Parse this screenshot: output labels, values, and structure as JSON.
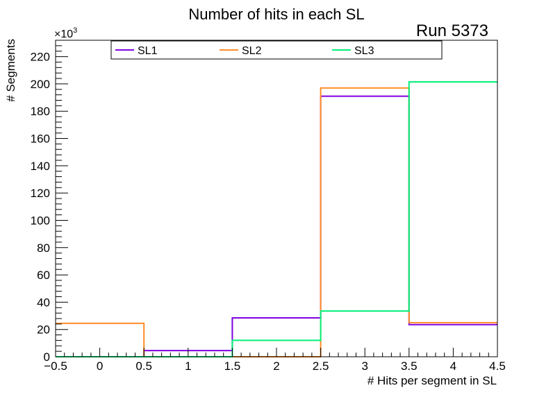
{
  "chart_data": {
    "type": "histogram-step",
    "title": "Number of hits in each SL",
    "annotation": "Run 5373",
    "xlabel": "# Hits per segment in SL",
    "ylabel": "# Segments",
    "y_scale_label": "×10",
    "y_scale_exponent": "3",
    "xlim": [
      -0.5,
      4.5
    ],
    "ylim": [
      0,
      232
    ],
    "x_ticks": [
      -0.5,
      0,
      0.5,
      1,
      1.5,
      2,
      2.5,
      3,
      3.5,
      4,
      4.5
    ],
    "x_tick_labels": [
      "−0.5",
      "0",
      "0.5",
      "1",
      "1.5",
      "2",
      "2.5",
      "3",
      "3.5",
      "4",
      "4.5"
    ],
    "y_ticks": [
      0,
      20,
      40,
      60,
      80,
      100,
      120,
      140,
      160,
      180,
      200,
      220
    ],
    "y_tick_labels": [
      "0",
      "20",
      "40",
      "60",
      "80",
      "100",
      "120",
      "140",
      "160",
      "180",
      "200",
      "220"
    ],
    "bin_edges": [
      -0.5,
      0.5,
      1.5,
      2.5,
      3.5,
      4.5
    ],
    "legend_position": "top",
    "series": [
      {
        "name": "SL1",
        "color": "#8000e0",
        "values": [
          0,
          4.5,
          28.5,
          191,
          23.5
        ]
      },
      {
        "name": "SL2",
        "color": "#ff8c28",
        "values": [
          24.5,
          0,
          0,
          197,
          25
        ]
      },
      {
        "name": "SL3",
        "color": "#00f078",
        "values": [
          0,
          0,
          12,
          33.5,
          201.5
        ]
      }
    ]
  }
}
